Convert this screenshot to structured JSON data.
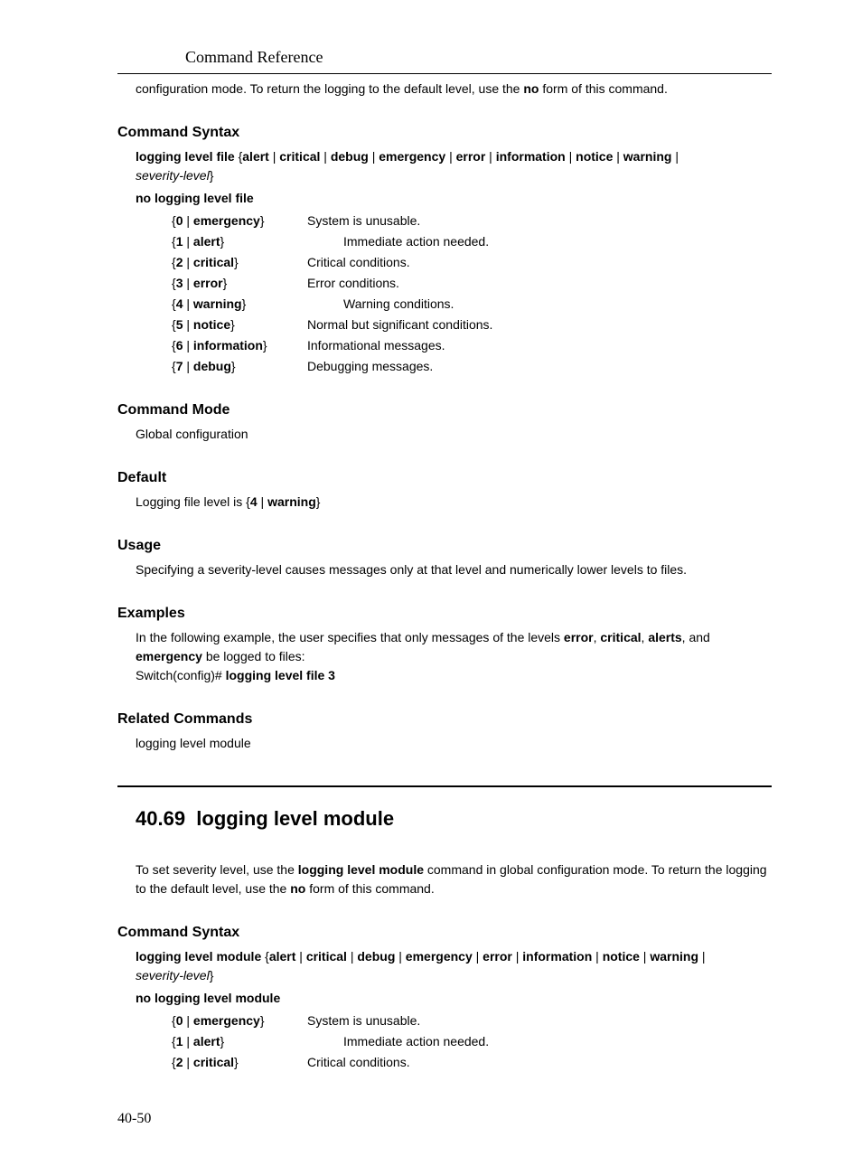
{
  "header": {
    "title": "Command Reference"
  },
  "intro": {
    "prefix": "configuration mode. To return the logging to the default level, use the ",
    "no_word": "no",
    "suffix": " form of this command."
  },
  "sec1": {
    "heading": "Command Syntax",
    "cmd_prefix": "logging level file",
    "brace_open": " {",
    "opt1": "alert",
    "sep": " | ",
    "opt2": "critical",
    "opt3": "debug",
    "opt4": "emergency",
    "opt5": "error",
    "opt6": "information",
    "opt7": "notice",
    "opt8": "warning",
    "sev": "severity-level",
    "brace_close": "}",
    "no_cmd": "no logging level file",
    "params": [
      {
        "key_open": "{",
        "num": "0",
        "sep": " | ",
        "name": "emergency",
        "key_close": "}",
        "desc": "System is unusable.",
        "indent": false
      },
      {
        "key_open": "{",
        "num": "1",
        "sep": " | ",
        "name": "alert",
        "key_close": "}",
        "desc": "Immediate action needed.",
        "indent": true
      },
      {
        "key_open": "{",
        "num": "2",
        "sep": " | ",
        "name": "critical",
        "key_close": "}",
        "desc": "Critical conditions.",
        "indent": false
      },
      {
        "key_open": "{",
        "num": "3",
        "sep": " | ",
        "name": "error",
        "key_close": "}",
        "desc": "Error conditions.",
        "indent": false
      },
      {
        "key_open": "{",
        "num": "4",
        "sep": " | ",
        "name": "warning",
        "key_close": "}",
        "desc": "Warning conditions.",
        "indent": true
      },
      {
        "key_open": "{",
        "num": "5",
        "sep": " | ",
        "name": "notice",
        "key_close": "}",
        "desc": "Normal but significant conditions.",
        "indent": false
      },
      {
        "key_open": "{",
        "num": "6",
        "sep": " | ",
        "name": "information",
        "key_close": "}",
        "desc": "Informational messages.",
        "indent": false
      },
      {
        "key_open": "{",
        "num": "7",
        "sep": " | ",
        "name": "debug",
        "key_close": "}",
        "desc": "Debugging messages.",
        "indent": false
      }
    ]
  },
  "sec2": {
    "heading": "Command Mode",
    "text": "Global configuration"
  },
  "sec3": {
    "heading": "Default",
    "prefix": "Logging file level is {",
    "num": "4",
    "sep": " | ",
    "name": "warning",
    "suffix": "}"
  },
  "sec4": {
    "heading": "Usage",
    "text": "Specifying a severity-level causes messages only at that level and numerically lower levels to files."
  },
  "sec5": {
    "heading": "Examples",
    "line1_prefix": "In the following example, the user specifies that only messages of the levels ",
    "w1": "error",
    "comma": ", ",
    "w2": "critical",
    "w3": "alerts",
    "and": ", and ",
    "w4": "emergency",
    "line1_suffix": " be logged to files:",
    "prompt": "Switch(config)# ",
    "cmd": "logging level file 3"
  },
  "sec6": {
    "heading": "Related Commands",
    "text": "logging level module"
  },
  "chapter": {
    "num": "40.69",
    "title": "logging level module"
  },
  "intro2": {
    "prefix": "To set severity level, use the ",
    "cmd": "logging level module",
    "mid": " command in global configuration mode. To return the logging to the default level, use the ",
    "no_word": "no",
    "suffix": " form of this command."
  },
  "sec7": {
    "heading": "Command Syntax",
    "cmd_prefix": "logging level module",
    "no_cmd": "no logging level module",
    "params": [
      {
        "key_open": "{",
        "num": "0",
        "sep": " | ",
        "name": "emergency",
        "key_close": "}",
        "desc": "System is unusable.",
        "indent": false
      },
      {
        "key_open": "{",
        "num": "1",
        "sep": " | ",
        "name": "alert",
        "key_close": "}",
        "desc": "Immediate action needed.",
        "indent": true
      },
      {
        "key_open": "{",
        "num": "2",
        "sep": " | ",
        "name": "critical",
        "key_close": "}",
        "desc": "Critical conditions.",
        "indent": false
      }
    ]
  },
  "footer": {
    "pagenum": "40-50"
  }
}
